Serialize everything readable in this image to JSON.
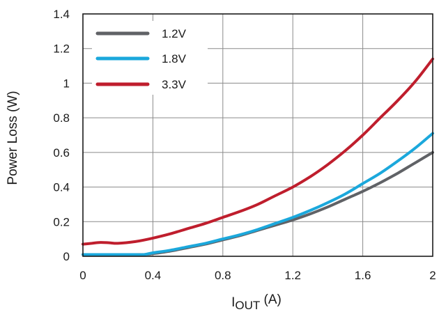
{
  "chart_data": {
    "type": "line",
    "ylabel": "Power Loss (W)",
    "xlabel": {
      "main": "I",
      "sub": "OUT",
      "rest": " (A)"
    },
    "xlim": [
      0,
      2
    ],
    "ylim": [
      0,
      1.4
    ],
    "x_ticks": [
      "0",
      "0.4",
      "0.8",
      "1.2",
      "1.6",
      "2"
    ],
    "y_ticks": [
      "0",
      "0.2",
      "0.4",
      "0.6",
      "0.8",
      "1",
      "1.2",
      "1.4"
    ],
    "x_tick_values": [
      0,
      0.4,
      0.8,
      1.2,
      1.6,
      2.0
    ],
    "y_tick_values": [
      0,
      0.2,
      0.4,
      0.6,
      0.8,
      1.0,
      1.2,
      1.4
    ],
    "grid": true,
    "legend_position": "top-left",
    "series": [
      {
        "name": "1.2V",
        "color": "#606266",
        "x": [
          0,
          0.1,
          0.2,
          0.3,
          0.35,
          0.4,
          0.5,
          0.6,
          0.7,
          0.8,
          0.9,
          1.0,
          1.1,
          1.2,
          1.3,
          1.4,
          1.5,
          1.6,
          1.7,
          1.8,
          1.9,
          2.0
        ],
        "y": [
          0.01,
          0.01,
          0.01,
          0.01,
          0.01,
          0.015,
          0.03,
          0.05,
          0.07,
          0.095,
          0.12,
          0.15,
          0.18,
          0.21,
          0.245,
          0.285,
          0.33,
          0.375,
          0.425,
          0.48,
          0.54,
          0.6
        ]
      },
      {
        "name": "1.8V",
        "color": "#1ba8dc",
        "x": [
          0,
          0.1,
          0.2,
          0.3,
          0.35,
          0.4,
          0.5,
          0.6,
          0.7,
          0.8,
          0.9,
          1.0,
          1.1,
          1.2,
          1.3,
          1.4,
          1.5,
          1.6,
          1.7,
          1.8,
          1.9,
          2.0
        ],
        "y": [
          0.01,
          0.01,
          0.01,
          0.01,
          0.01,
          0.02,
          0.035,
          0.055,
          0.075,
          0.1,
          0.125,
          0.155,
          0.19,
          0.225,
          0.265,
          0.31,
          0.36,
          0.42,
          0.48,
          0.55,
          0.625,
          0.71
        ]
      },
      {
        "name": "3.3V",
        "color": "#bf1e2d",
        "x": [
          0,
          0.05,
          0.1,
          0.15,
          0.2,
          0.3,
          0.4,
          0.5,
          0.6,
          0.7,
          0.8,
          0.9,
          1.0,
          1.1,
          1.2,
          1.3,
          1.4,
          1.5,
          1.6,
          1.7,
          1.8,
          1.9,
          2.0
        ],
        "y": [
          0.07,
          0.075,
          0.08,
          0.078,
          0.075,
          0.085,
          0.105,
          0.13,
          0.16,
          0.19,
          0.225,
          0.26,
          0.3,
          0.35,
          0.4,
          0.46,
          0.53,
          0.61,
          0.7,
          0.8,
          0.9,
          1.01,
          1.14
        ]
      }
    ]
  }
}
